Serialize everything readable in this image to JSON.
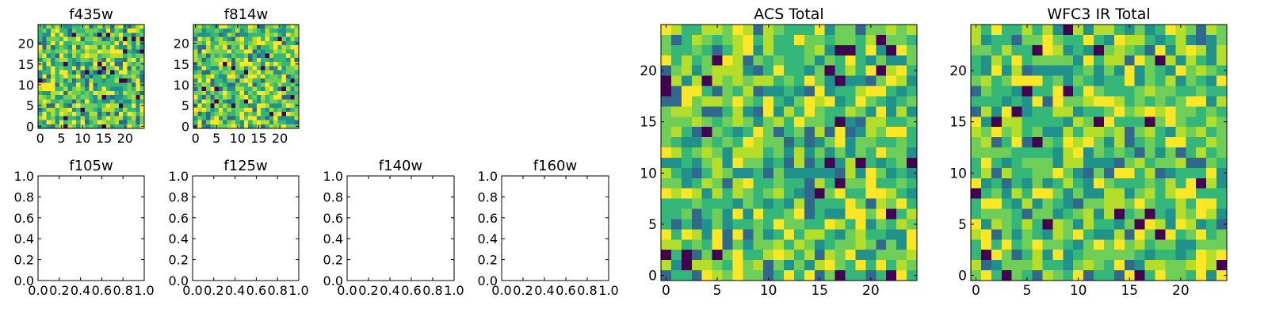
{
  "chart_data": [
    {
      "type": "heatmap",
      "title": "f435w",
      "colormap": "viridis",
      "xlim": [
        0,
        24
      ],
      "ylim": [
        0,
        24
      ],
      "xticks": [
        0,
        5,
        10,
        15,
        20
      ],
      "yticks": [
        0,
        5,
        10,
        15,
        20
      ],
      "xticklabels": [
        "0",
        "5",
        "10",
        "15",
        "20"
      ],
      "yticklabels": [
        "0",
        "5",
        "10",
        "15",
        "20"
      ],
      "grid": false
    },
    {
      "type": "heatmap",
      "title": "f814w",
      "colormap": "viridis",
      "xlim": [
        0,
        24
      ],
      "ylim": [
        0,
        24
      ],
      "xticks": [
        0,
        5,
        10,
        15,
        20
      ],
      "yticks": [
        0,
        5,
        10,
        15,
        20
      ],
      "xticklabels": [
        "0",
        "5",
        "10",
        "15",
        "20"
      ],
      "yticklabels": [
        "0",
        "5",
        "10",
        "15",
        "20"
      ],
      "grid": false
    },
    {
      "type": "heatmap",
      "title": "f105w",
      "empty": true,
      "xlim": [
        0,
        1
      ],
      "ylim": [
        0,
        1
      ],
      "xticks": [
        0.0,
        0.2,
        0.4,
        0.6,
        0.8,
        1.0
      ],
      "yticks": [
        0.0,
        0.2,
        0.4,
        0.6,
        0.8,
        1.0
      ],
      "xticklabels": [
        "0.0",
        "0.2",
        "0.4",
        "0.6",
        "0.8",
        "1.0"
      ],
      "yticklabels": [
        "0.0",
        "0.2",
        "0.4",
        "0.6",
        "0.8",
        "1.0"
      ],
      "grid": false
    },
    {
      "type": "heatmap",
      "title": "f125w",
      "empty": true,
      "xlim": [
        0,
        1
      ],
      "ylim": [
        0,
        1
      ],
      "xticks": [
        0.0,
        0.2,
        0.4,
        0.6,
        0.8,
        1.0
      ],
      "yticks": [
        0.0,
        0.2,
        0.4,
        0.6,
        0.8,
        1.0
      ],
      "xticklabels": [
        "0.0",
        "0.2",
        "0.4",
        "0.6",
        "0.8",
        "1.0"
      ],
      "yticklabels": [
        "0.0",
        "0.2",
        "0.4",
        "0.6",
        "0.8",
        "1.0"
      ],
      "grid": false
    },
    {
      "type": "heatmap",
      "title": "f140w",
      "empty": true,
      "xlim": [
        0,
        1
      ],
      "ylim": [
        0,
        1
      ],
      "xticks": [
        0.0,
        0.2,
        0.4,
        0.6,
        0.8,
        1.0
      ],
      "yticks": [
        0.0,
        0.2,
        0.4,
        0.6,
        0.8,
        1.0
      ],
      "xticklabels": [
        "0.0",
        "0.2",
        "0.4",
        "0.6",
        "0.8",
        "1.0"
      ],
      "yticklabels": [
        "0.0",
        "0.2",
        "0.4",
        "0.6",
        "0.8",
        "1.0"
      ],
      "grid": false
    },
    {
      "type": "heatmap",
      "title": "f160w",
      "empty": true,
      "xlim": [
        0,
        1
      ],
      "ylim": [
        0,
        1
      ],
      "xticks": [
        0.0,
        0.2,
        0.4,
        0.6,
        0.8,
        1.0
      ],
      "yticks": [
        0.0,
        0.2,
        0.4,
        0.6,
        0.8,
        1.0
      ],
      "xticklabels": [
        "0.0",
        "0.2",
        "0.4",
        "0.6",
        "0.8",
        "1.0"
      ],
      "yticklabels": [
        "0.0",
        "0.2",
        "0.4",
        "0.6",
        "0.8",
        "1.0"
      ],
      "grid": false
    },
    {
      "type": "heatmap",
      "title": "ACS Total",
      "colormap": "viridis",
      "xlim": [
        0,
        24
      ],
      "ylim": [
        0,
        24
      ],
      "xticks": [
        0,
        5,
        10,
        15,
        20
      ],
      "yticks": [
        0,
        5,
        10,
        15,
        20
      ],
      "xticklabels": [
        "0",
        "5",
        "10",
        "15",
        "20"
      ],
      "yticklabels": [
        "0",
        "5",
        "10",
        "15",
        "20"
      ],
      "grid": false
    },
    {
      "type": "heatmap",
      "title": "WFC3 IR Total",
      "colormap": "viridis",
      "xlim": [
        0,
        24
      ],
      "ylim": [
        0,
        24
      ],
      "xticks": [
        0,
        5,
        10,
        15,
        20
      ],
      "yticks": [
        0,
        5,
        10,
        15,
        20
      ],
      "xticklabels": [
        "0",
        "5",
        "10",
        "15",
        "20"
      ],
      "yticklabels": [
        "0",
        "5",
        "10",
        "15",
        "20"
      ],
      "grid": false
    }
  ],
  "palette": [
    "#440154",
    "#31688e",
    "#21918c",
    "#35b779",
    "#6ece58",
    "#b5de2b",
    "#fde725"
  ]
}
